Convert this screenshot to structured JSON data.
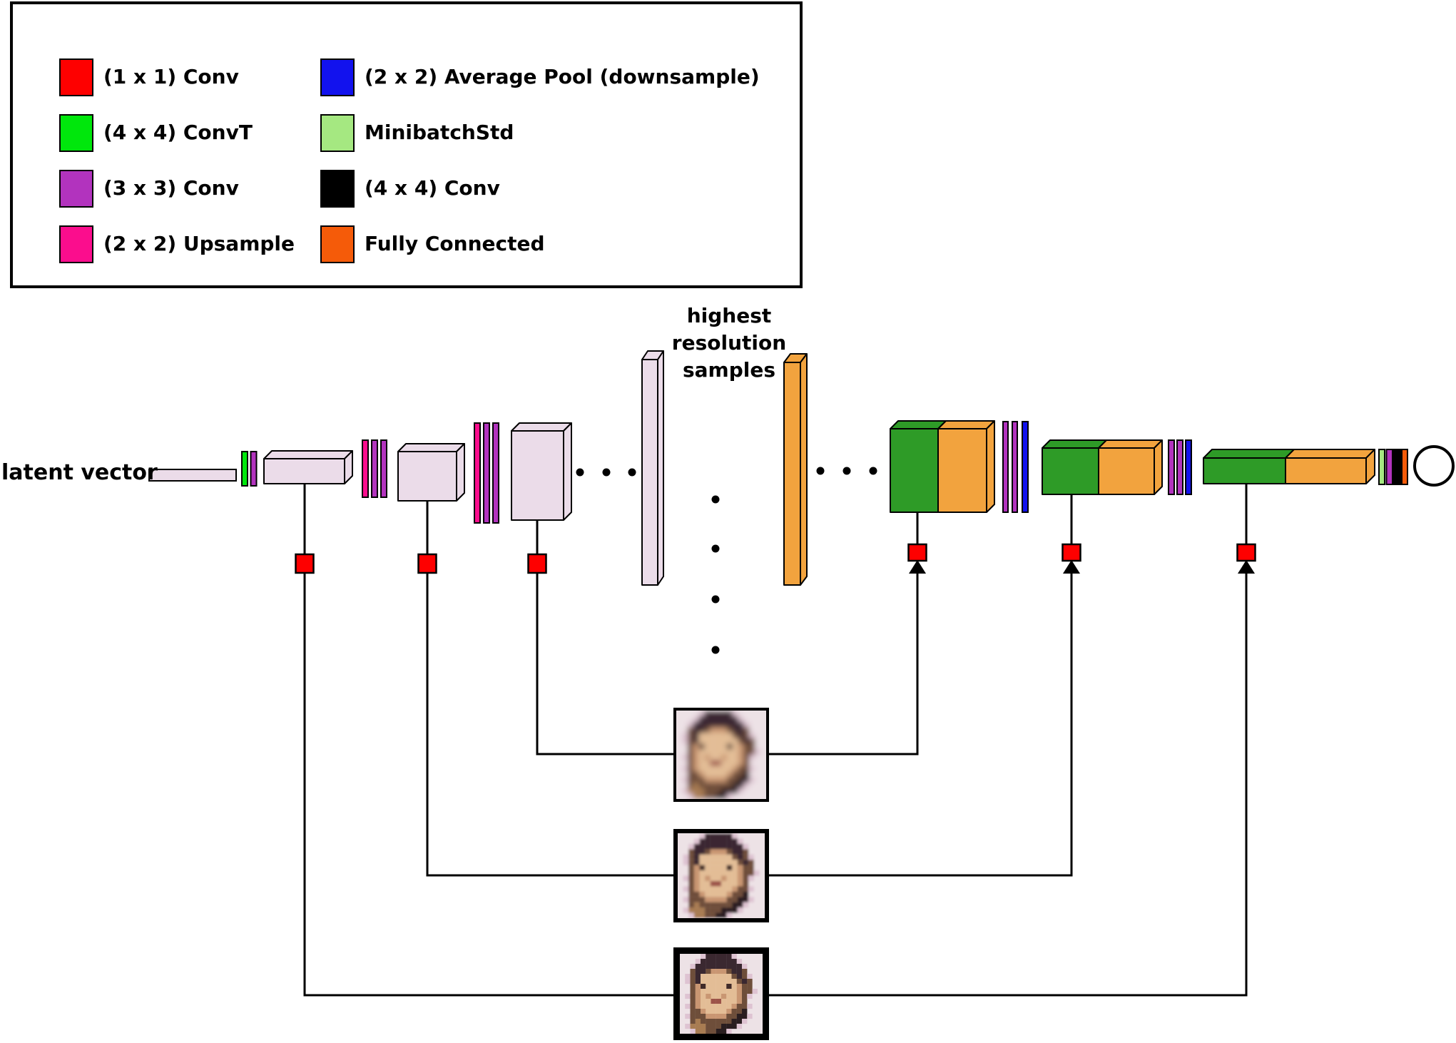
{
  "legend": {
    "items": [
      {
        "label": "(1 x 1) Conv",
        "color_key": "conv1_red"
      },
      {
        "label": "(4 x 4) ConvT",
        "color_key": "convt_green"
      },
      {
        "label": "(3 x 3) Conv",
        "color_key": "conv3_purple"
      },
      {
        "label": "(2 x 2) Upsample",
        "color_key": "upsample_pink"
      },
      {
        "label": "(2 x 2) Average Pool (downsample)",
        "color_key": "avgpool_blue"
      },
      {
        "label": "MinibatchStd",
        "color_key": "minibatch_green"
      },
      {
        "label": "(4 x 4) Conv",
        "color_key": "conv4_black"
      },
      {
        "label": "Fully Connected",
        "color_key": "fc_orange"
      }
    ]
  },
  "labels": {
    "latent_vector": "latent vector",
    "highest_resolution_samples": "highest\nresolution\nsamples"
  },
  "colors": {
    "conv1_red": "#fe0000",
    "convt_green": "#00e70c",
    "conv3_purple": "#b233be",
    "upsample_pink": "#fb0d8d",
    "avgpool_blue": "#1212ee",
    "minibatch_green": "#a5e881",
    "conv4_black": "#000000",
    "fc_orange": "#f55b09",
    "feature_map_lavender": "#ebdce9",
    "disc_feature_green": "#2e9b27",
    "disc_feature_orange": "#f2a33e",
    "outline_black": "#000000",
    "background_white": "#ffffff"
  },
  "faces": {
    "palette": {
      "B": "#ede2e6",
      "P": "#dec3d2",
      "H": "#3a2830",
      "h": "#6e4e3a",
      "g": "#a87c52",
      "S": "#c99672",
      "s": "#e3bd96",
      "E": "#402a28",
      "M": "#9c5348",
      "D": "#2a1e20"
    },
    "grid": [
      "BBBBPHHHHHPBBBBB",
      "BBBPHHHHHHHPBBBB",
      "BBPHHHHHHHHHPBBB",
      "BBhHHhSSShHHhBBB",
      "BPhHsssssshHhPBB",
      "BPhHssssssshHhBB",
      "BBhSEssssEsShhBB",
      "BBhSsssssssShhPB",
      "BPhSsSssSssShPBB",
      "BBhSssMMsssShBBB",
      "BPhSssssssShhPBB",
      "BBhhSssssShhDBBB",
      "BPhhhSSSShhDDPBB",
      "BBhghhhhhhDDPBBB",
      "BPggghhhDDDPBBBB",
      "BBPgghhDDPBBBBBB"
    ],
    "samples": [
      {
        "alt": "generated face sample - highest resolution (finest detail)"
      },
      {
        "alt": "generated face sample - medium resolution (moderate pixelation)"
      },
      {
        "alt": "generated face sample - lowest resolution (coarse pixelation)"
      }
    ]
  }
}
